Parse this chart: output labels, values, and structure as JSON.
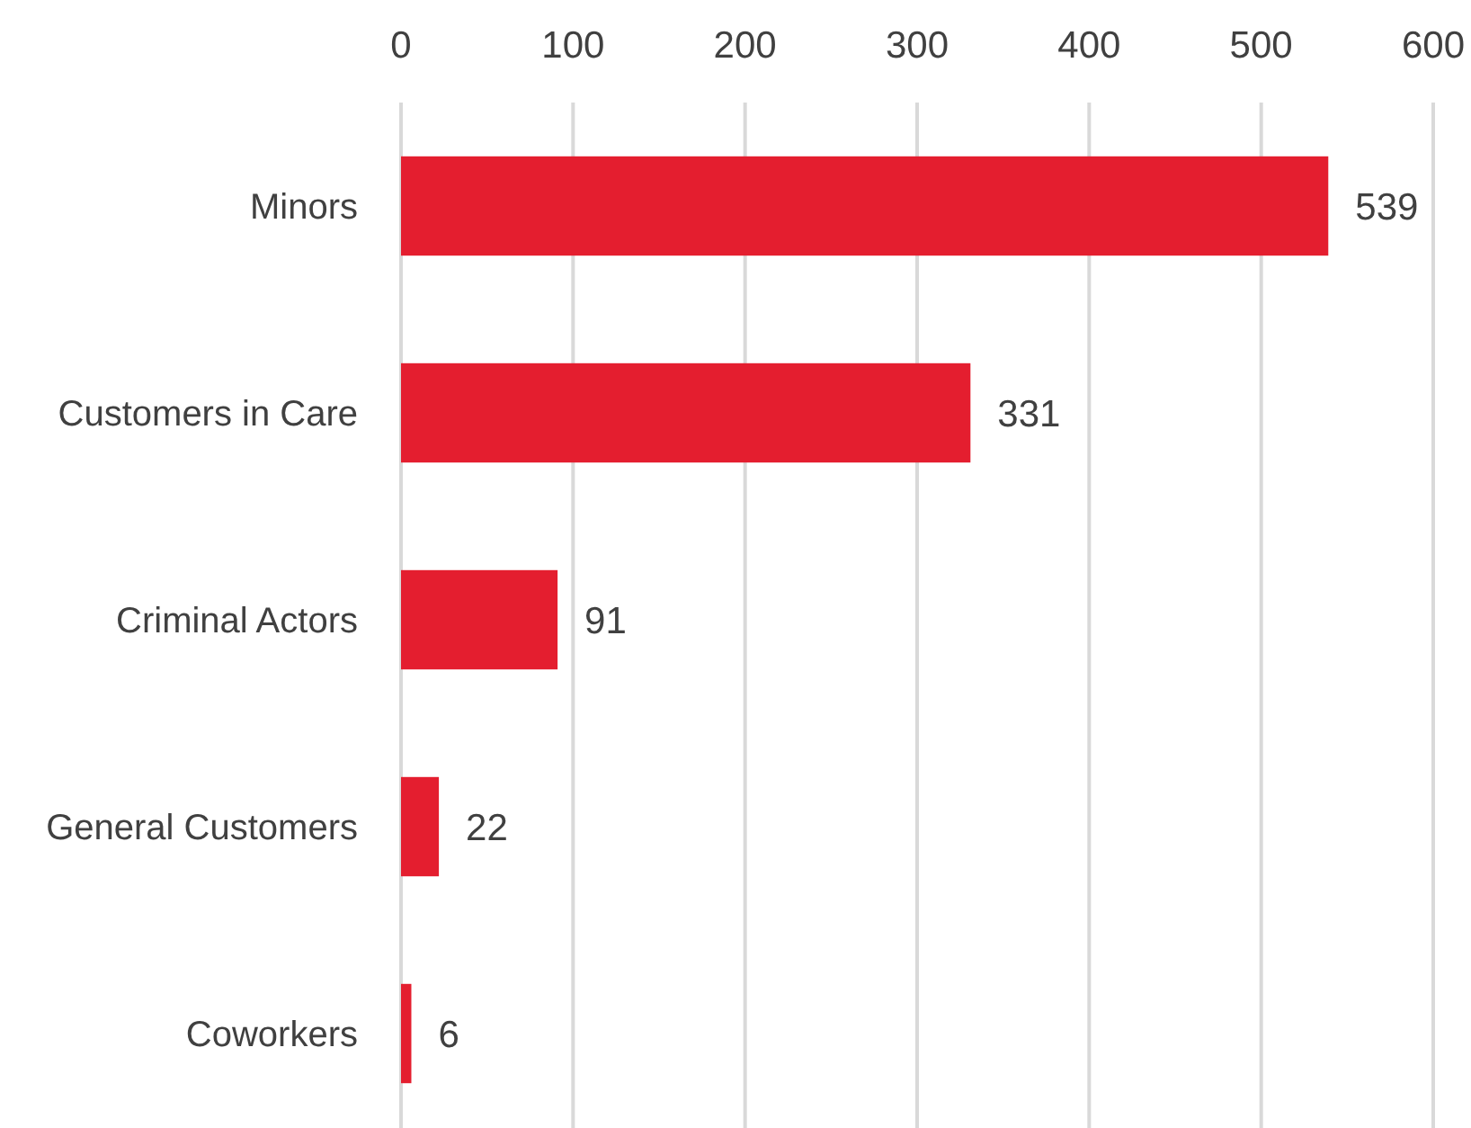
{
  "chart_data": {
    "type": "bar",
    "orientation": "horizontal",
    "categories": [
      "Minors",
      "Customers in Care",
      "Criminal Actors",
      "General Customers",
      "Coworkers"
    ],
    "values": [
      539,
      331,
      91,
      22,
      6
    ],
    "color": "#e41e2f",
    "xlim": [
      0,
      600
    ],
    "xticks": [
      0,
      100,
      200,
      300,
      400,
      500,
      600
    ],
    "grid": "x",
    "data_labels": true
  }
}
